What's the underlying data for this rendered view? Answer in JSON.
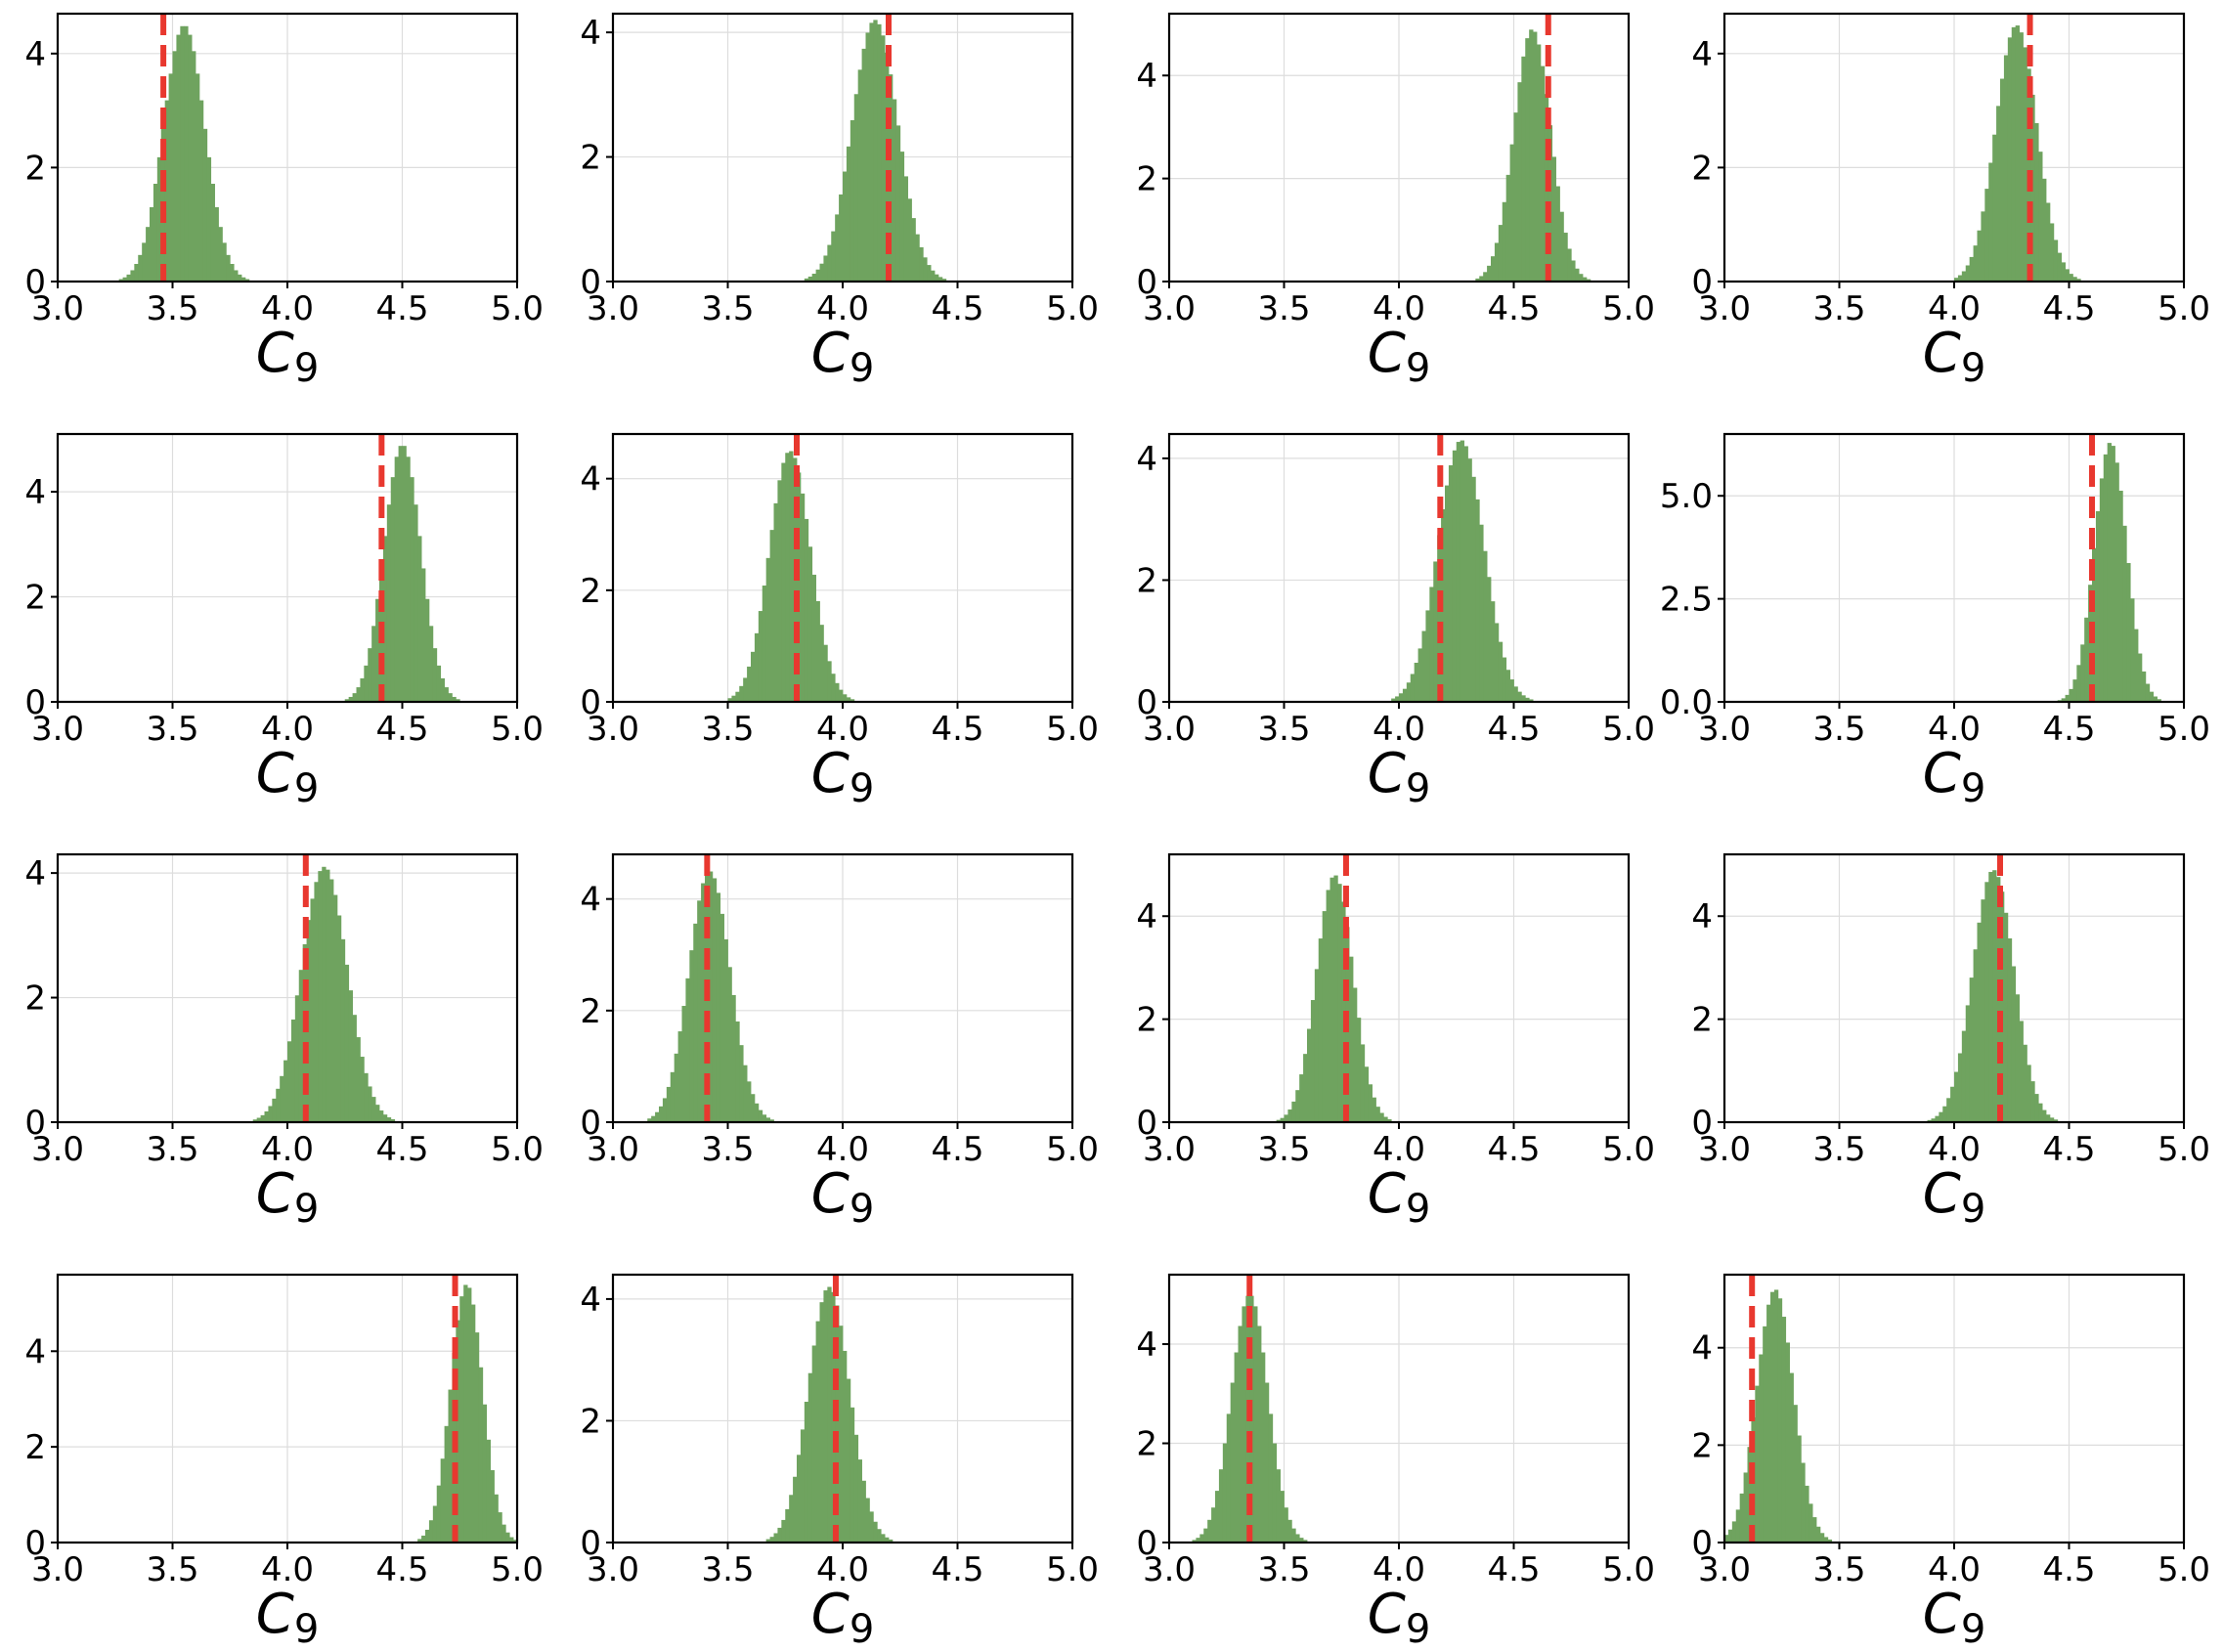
{
  "figure": {
    "background": "#ffffff"
  },
  "style": {
    "bar_color": "#6fa35f",
    "line_color": "#e8382f",
    "grid_color": "#dddddd"
  },
  "chart_data": [
    {
      "type": "bar",
      "title": "",
      "xlabel": "C9",
      "ylabel": "",
      "xlim": [
        3,
        5
      ],
      "ylim": [
        0,
        4.7
      ],
      "yticks": [
        0,
        2,
        4
      ],
      "ytick_labels": [
        "0",
        "2",
        "4"
      ],
      "xticks": [
        3.0,
        3.5,
        4.0,
        4.5,
        5.0
      ],
      "xtick_labels": [
        "3.0",
        "3.5",
        "4.0",
        "4.5",
        "5.0"
      ],
      "grid": true,
      "dist": {
        "mu": 3.55,
        "sigma": 0.09,
        "peak": 4.5
      },
      "reference_line": 3.46
    },
    {
      "type": "bar",
      "title": "",
      "xlabel": "C9",
      "ylabel": "",
      "xlim": [
        3,
        5
      ],
      "ylim": [
        0,
        4.3
      ],
      "yticks": [
        0,
        2,
        4
      ],
      "ytick_labels": [
        "0",
        "2",
        "4"
      ],
      "xticks": [
        3.0,
        3.5,
        4.0,
        4.5,
        5.0
      ],
      "xtick_labels": [
        "3.0",
        "3.5",
        "4.0",
        "4.5",
        "5.0"
      ],
      "grid": true,
      "dist": {
        "mu": 4.14,
        "sigma": 0.1,
        "peak": 4.2
      },
      "reference_line": 4.2
    },
    {
      "type": "bar",
      "title": "",
      "xlabel": "C9",
      "ylabel": "",
      "xlim": [
        3,
        5
      ],
      "ylim": [
        0,
        5.2
      ],
      "yticks": [
        0,
        2,
        4
      ],
      "ytick_labels": [
        "0",
        "2",
        "4"
      ],
      "xticks": [
        3.0,
        3.5,
        4.0,
        4.5,
        5.0
      ],
      "xtick_labels": [
        "3.0",
        "3.5",
        "4.0",
        "4.5",
        "5.0"
      ],
      "grid": true,
      "dist": {
        "mu": 4.58,
        "sigma": 0.08,
        "peak": 4.9
      },
      "reference_line": 4.65
    },
    {
      "type": "bar",
      "title": "",
      "xlabel": "C9",
      "ylabel": "",
      "xlim": [
        3,
        5
      ],
      "ylim": [
        0,
        4.7
      ],
      "yticks": [
        0,
        2,
        4
      ],
      "ytick_labels": [
        "0",
        "2",
        "4"
      ],
      "xticks": [
        3.0,
        3.5,
        4.0,
        4.5,
        5.0
      ],
      "xtick_labels": [
        "3.0",
        "3.5",
        "4.0",
        "4.5",
        "5.0"
      ],
      "grid": true,
      "dist": {
        "mu": 4.27,
        "sigma": 0.09,
        "peak": 4.5
      },
      "reference_line": 4.33
    },
    {
      "type": "bar",
      "title": "",
      "xlabel": "C9",
      "ylabel": "",
      "xlim": [
        3,
        5
      ],
      "ylim": [
        0,
        5.1
      ],
      "yticks": [
        0,
        2,
        4
      ],
      "ytick_labels": [
        "0",
        "2",
        "4"
      ],
      "xticks": [
        3.0,
        3.5,
        4.0,
        4.5,
        5.0
      ],
      "xtick_labels": [
        "3.0",
        "3.5",
        "4.0",
        "4.5",
        "5.0"
      ],
      "grid": true,
      "dist": {
        "mu": 4.5,
        "sigma": 0.08,
        "peak": 4.9
      },
      "reference_line": 4.41
    },
    {
      "type": "bar",
      "title": "",
      "xlabel": "C9",
      "ylabel": "",
      "xlim": [
        3,
        5
      ],
      "ylim": [
        0,
        4.8
      ],
      "yticks": [
        0,
        2,
        4
      ],
      "ytick_labels": [
        "0",
        "2",
        "4"
      ],
      "xticks": [
        3.0,
        3.5,
        4.0,
        4.5,
        5.0
      ],
      "xtick_labels": [
        "3.0",
        "3.5",
        "4.0",
        "4.5",
        "5.0"
      ],
      "grid": true,
      "dist": {
        "mu": 3.77,
        "sigma": 0.09,
        "peak": 4.5
      },
      "reference_line": 3.8
    },
    {
      "type": "bar",
      "title": "",
      "xlabel": "C9",
      "ylabel": "",
      "xlim": [
        3,
        5
      ],
      "ylim": [
        0,
        4.4
      ],
      "yticks": [
        0,
        2,
        4
      ],
      "ytick_labels": [
        "0",
        "2",
        "4"
      ],
      "xticks": [
        3.0,
        3.5,
        4.0,
        4.5,
        5.0
      ],
      "xtick_labels": [
        "3.0",
        "3.5",
        "4.0",
        "4.5",
        "5.0"
      ],
      "grid": true,
      "dist": {
        "mu": 4.27,
        "sigma": 0.1,
        "peak": 4.3
      },
      "reference_line": 4.18
    },
    {
      "type": "bar",
      "title": "",
      "xlabel": "C9",
      "ylabel": "",
      "xlim": [
        3,
        5
      ],
      "ylim": [
        0,
        6.5
      ],
      "yticks": [
        0,
        2.5,
        5
      ],
      "ytick_labels": [
        "0.0",
        "2.5",
        "5.0"
      ],
      "xticks": [
        3.0,
        3.5,
        4.0,
        4.5,
        5.0
      ],
      "xtick_labels": [
        "3.0",
        "3.5",
        "4.0",
        "4.5",
        "5.0"
      ],
      "grid": true,
      "dist": {
        "mu": 4.68,
        "sigma": 0.07,
        "peak": 6.3
      },
      "reference_line": 4.6
    },
    {
      "type": "bar",
      "title": "",
      "xlabel": "C9",
      "ylabel": "",
      "xlim": [
        3,
        5
      ],
      "ylim": [
        0,
        4.3
      ],
      "yticks": [
        0,
        2,
        4
      ],
      "ytick_labels": [
        "0",
        "2",
        "4"
      ],
      "xticks": [
        3.0,
        3.5,
        4.0,
        4.5,
        5.0
      ],
      "xtick_labels": [
        "3.0",
        "3.5",
        "4.0",
        "4.5",
        "5.0"
      ],
      "grid": true,
      "dist": {
        "mu": 4.16,
        "sigma": 0.1,
        "peak": 4.1
      },
      "reference_line": 4.08
    },
    {
      "type": "bar",
      "title": "",
      "xlabel": "C9",
      "ylabel": "",
      "xlim": [
        3,
        5
      ],
      "ylim": [
        0,
        4.8
      ],
      "yticks": [
        0,
        2,
        4
      ],
      "ytick_labels": [
        "0",
        "2",
        "4"
      ],
      "xticks": [
        3.0,
        3.5,
        4.0,
        4.5,
        5.0
      ],
      "xtick_labels": [
        "3.0",
        "3.5",
        "4.0",
        "4.5",
        "5.0"
      ],
      "grid": true,
      "dist": {
        "mu": 3.42,
        "sigma": 0.09,
        "peak": 4.5
      },
      "reference_line": 3.41
    },
    {
      "type": "bar",
      "title": "",
      "xlabel": "C9",
      "ylabel": "",
      "xlim": [
        3,
        5
      ],
      "ylim": [
        0,
        5.2
      ],
      "yticks": [
        0,
        2,
        4
      ],
      "ytick_labels": [
        "0",
        "2",
        "4"
      ],
      "xticks": [
        3.0,
        3.5,
        4.0,
        4.5,
        5.0
      ],
      "xtick_labels": [
        "3.0",
        "3.5",
        "4.0",
        "4.5",
        "5.0"
      ],
      "grid": true,
      "dist": {
        "mu": 3.72,
        "sigma": 0.08,
        "peak": 4.8
      },
      "reference_line": 3.77
    },
    {
      "type": "bar",
      "title": "",
      "xlabel": "C9",
      "ylabel": "",
      "xlim": [
        3,
        5
      ],
      "ylim": [
        0,
        5.2
      ],
      "yticks": [
        0,
        2,
        4
      ],
      "ytick_labels": [
        "0",
        "2",
        "4"
      ],
      "xticks": [
        3.0,
        3.5,
        4.0,
        4.5,
        5.0
      ],
      "xtick_labels": [
        "3.0",
        "3.5",
        "4.0",
        "4.5",
        "5.0"
      ],
      "grid": true,
      "dist": {
        "mu": 4.17,
        "sigma": 0.09,
        "peak": 4.9
      },
      "reference_line": 4.2
    },
    {
      "type": "bar",
      "title": "",
      "xlabel": "C9",
      "ylabel": "",
      "xlim": [
        3,
        5
      ],
      "ylim": [
        0,
        5.6
      ],
      "yticks": [
        0,
        2,
        4
      ],
      "ytick_labels": [
        "0",
        "2",
        "4"
      ],
      "xticks": [
        3.0,
        3.5,
        4.0,
        4.5,
        5.0
      ],
      "xtick_labels": [
        "3.0",
        "3.5",
        "4.0",
        "4.5",
        "5.0"
      ],
      "grid": true,
      "dist": {
        "mu": 4.78,
        "sigma": 0.07,
        "peak": 5.4
      },
      "reference_line": 4.73
    },
    {
      "type": "bar",
      "title": "",
      "xlabel": "C9",
      "ylabel": "",
      "xlim": [
        3,
        5
      ],
      "ylim": [
        0,
        4.4
      ],
      "yticks": [
        0,
        2,
        4
      ],
      "ytick_labels": [
        "0",
        "2",
        "4"
      ],
      "xticks": [
        3.0,
        3.5,
        4.0,
        4.5,
        5.0
      ],
      "xtick_labels": [
        "3.0",
        "3.5",
        "4.0",
        "4.5",
        "5.0"
      ],
      "grid": true,
      "dist": {
        "mu": 3.94,
        "sigma": 0.09,
        "peak": 4.2
      },
      "reference_line": 3.97
    },
    {
      "type": "bar",
      "title": "",
      "xlabel": "C9",
      "ylabel": "",
      "xlim": [
        3,
        5
      ],
      "ylim": [
        0,
        5.4
      ],
      "yticks": [
        0,
        2,
        4
      ],
      "ytick_labels": [
        "0",
        "2",
        "4"
      ],
      "xticks": [
        3.0,
        3.5,
        4.0,
        4.5,
        5.0
      ],
      "xtick_labels": [
        "3.0",
        "3.5",
        "4.0",
        "4.5",
        "5.0"
      ],
      "grid": true,
      "dist": {
        "mu": 3.35,
        "sigma": 0.08,
        "peak": 5.0
      },
      "reference_line": 3.35
    },
    {
      "type": "bar",
      "title": "",
      "xlabel": "C9",
      "ylabel": "",
      "xlim": [
        3,
        5
      ],
      "ylim": [
        0,
        5.5
      ],
      "yticks": [
        0,
        2,
        4
      ],
      "ytick_labels": [
        "0",
        "2",
        "4"
      ],
      "xticks": [
        3.0,
        3.5,
        4.0,
        4.5,
        5.0
      ],
      "xtick_labels": [
        "3.0",
        "3.5",
        "4.0",
        "4.5",
        "5.0"
      ],
      "grid": true,
      "dist": {
        "mu": 3.22,
        "sigma": 0.08,
        "peak": 5.2
      },
      "reference_line": 3.12
    }
  ]
}
